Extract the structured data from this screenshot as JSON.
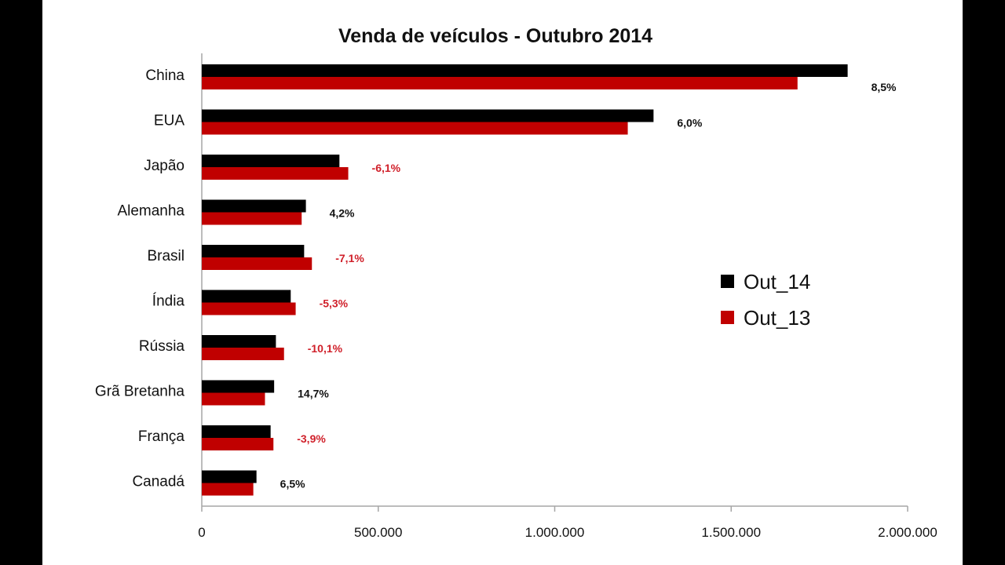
{
  "chart_data": {
    "type": "bar",
    "orientation": "horizontal",
    "title": "Venda de veículos - Outubro  2014",
    "categories": [
      "China",
      "EUA",
      "Japão",
      "Alemanha",
      "Brasil",
      "Índia",
      "Rússia",
      "Grã Bretanha",
      "França",
      "Canadá"
    ],
    "series": [
      {
        "name": "Out_14",
        "color": "#000000",
        "values": [
          1830000,
          1280000,
          390000,
          295000,
          290000,
          252000,
          210000,
          205000,
          195000,
          155000
        ]
      },
      {
        "name": "Out_13",
        "color": "#c00000",
        "values": [
          1688000,
          1207000,
          415000,
          283000,
          312000,
          266000,
          233000,
          179000,
          203000,
          146000
        ]
      }
    ],
    "annotations": [
      "8,5%",
      "6,0%",
      "-6,1%",
      "4,2%",
      "-7,1%",
      "-5,3%",
      "-10,1%",
      "14,7%",
      "-3,9%",
      "6,5%"
    ],
    "annotation_colors": {
      "positive": "#111111",
      "negative": "#d0202a"
    },
    "xlim": [
      0,
      2000000
    ],
    "xticks": [
      0,
      500000,
      1000000,
      1500000,
      2000000
    ],
    "xtick_labels": [
      "0",
      "500.000",
      "1.000.000",
      "1.500.000",
      "2.000.000"
    ],
    "grid": false,
    "legend_position": "right"
  }
}
